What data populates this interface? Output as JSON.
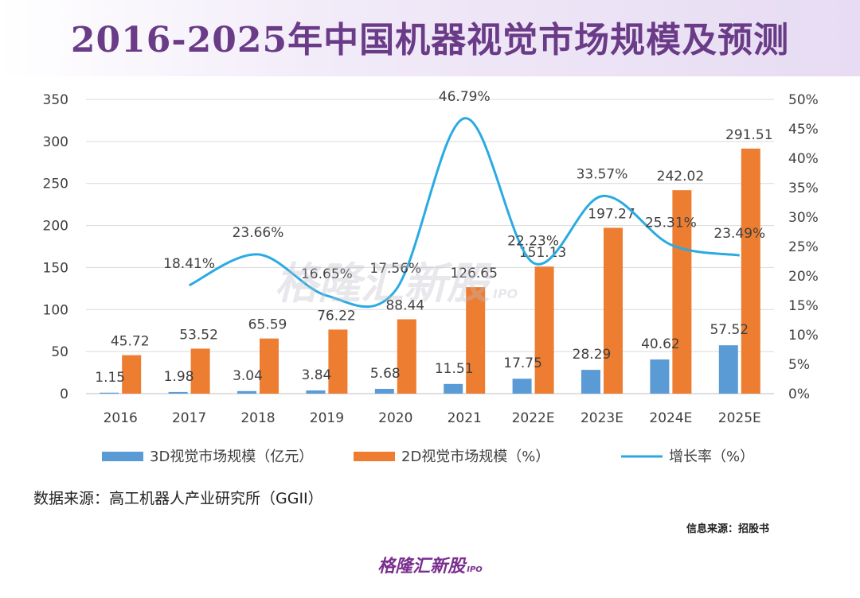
{
  "title": "2016-2025年中国机器视觉市场规模及预测",
  "source_text": "数据来源：高工机器人产业研究所（GGII）",
  "info_text": "信息来源：招股书",
  "logo_text": "格隆汇新股",
  "logo_sub": "IPO",
  "colors": {
    "bar3d": "#5b9bd5",
    "bar2d": "#ed7d31",
    "line": "#29abe2",
    "title": "#6a3b87"
  },
  "chart_data": {
    "type": "bar",
    "categories": [
      "2016",
      "2017",
      "2018",
      "2019",
      "2020",
      "2021",
      "2022E",
      "2023E",
      "2024E",
      "2025E"
    ],
    "series": [
      {
        "name": "3D视觉市场规模（亿元）",
        "type": "bar",
        "axis": "left",
        "values": [
          1.15,
          1.98,
          3.04,
          3.84,
          5.68,
          11.51,
          17.75,
          28.29,
          40.62,
          57.52
        ],
        "labels": [
          "1.15",
          "1.98",
          "3.04",
          "3.84",
          "5.68",
          "11.51",
          "17.75",
          "28.29",
          "40.62",
          "57.52"
        ]
      },
      {
        "name": "2D视觉市场规模（%）",
        "type": "bar",
        "axis": "left",
        "values": [
          45.72,
          53.52,
          65.59,
          76.22,
          88.44,
          126.65,
          151.13,
          197.27,
          242.02,
          291.51
        ],
        "labels": [
          "45.72",
          "53.52",
          "65.59",
          "76.22",
          "88.44",
          "126.65",
          "151.13",
          "197.27",
          "242.02",
          "291.51"
        ]
      },
      {
        "name": "增长率（%）",
        "type": "line",
        "axis": "right",
        "values": [
          null,
          18.41,
          23.66,
          16.65,
          17.56,
          46.79,
          22.23,
          33.57,
          25.31,
          23.49
        ],
        "labels": [
          "",
          "18.41%",
          "23.66%",
          "16.65%",
          "17.56%",
          "46.79%",
          "22.23%",
          "33.57%",
          "25.31%",
          "23.49%"
        ]
      }
    ],
    "y_left": {
      "min": 0,
      "max": 350,
      "ticks": [
        "0",
        "50",
        "100",
        "150",
        "200",
        "250",
        "300",
        "350"
      ]
    },
    "y_right": {
      "min": 0,
      "max": 50,
      "ticks": [
        "0%",
        "5%",
        "10%",
        "15%",
        "20%",
        "25%",
        "30%",
        "35%",
        "40%",
        "45%",
        "50%"
      ]
    },
    "grid": true,
    "legend_position": "bottom"
  }
}
